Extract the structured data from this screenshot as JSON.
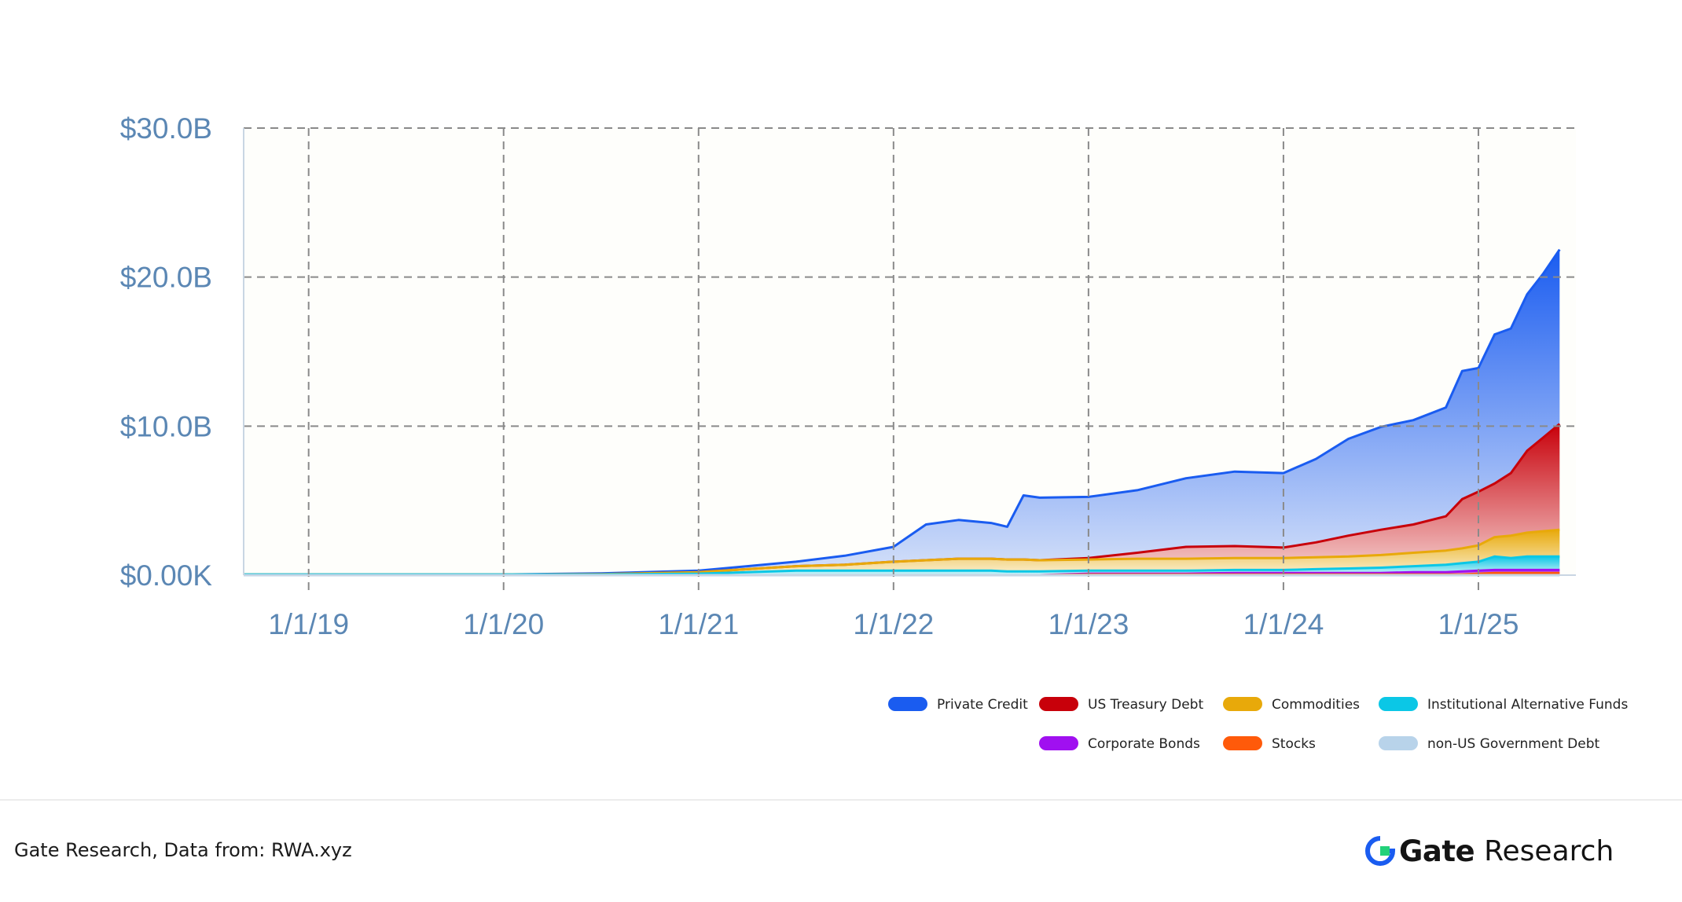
{
  "chart_data": {
    "type": "area",
    "stacked": true,
    "title": "",
    "xlabel": "",
    "ylabel": "",
    "ylim": [
      0,
      30
    ],
    "y_unit": "$B",
    "y_ticks": [
      {
        "value": 0,
        "label": "$0.00K"
      },
      {
        "value": 10,
        "label": "$10.0B"
      },
      {
        "value": 20,
        "label": "$20.0B"
      },
      {
        "value": 30,
        "label": "$30.0B"
      }
    ],
    "x_ticks": [
      "1/1/19",
      "1/1/20",
      "1/1/21",
      "1/1/22",
      "1/1/23",
      "1/1/24",
      "1/1/25"
    ],
    "x_range": [
      "2018-09-01",
      "2025-07-01"
    ],
    "grid": true,
    "legend_position": "bottom-right",
    "x": [
      "2018-09",
      "2019-01",
      "2019-07",
      "2020-01",
      "2020-07",
      "2021-01",
      "2021-04",
      "2021-07",
      "2021-10",
      "2022-01",
      "2022-03",
      "2022-05",
      "2022-07",
      "2022-08",
      "2022-09",
      "2022-10",
      "2023-01",
      "2023-04",
      "2023-07",
      "2023-10",
      "2024-01",
      "2024-03",
      "2024-05",
      "2024-07",
      "2024-09",
      "2024-11",
      "2024-12",
      "2025-01",
      "2025-02",
      "2025-03",
      "2025-04",
      "2025-05",
      "2025-06"
    ],
    "series": [
      {
        "name": "non-US Government Debt",
        "color": "#b8d3ea",
        "values": [
          0,
          0,
          0,
          0,
          0,
          0,
          0,
          0,
          0,
          0,
          0,
          0,
          0,
          0,
          0,
          0,
          0,
          0,
          0,
          0,
          0,
          0,
          0,
          0,
          0,
          0,
          0,
          0,
          0,
          0,
          0,
          0,
          0
        ]
      },
      {
        "name": "Stocks",
        "color": "#ff5a0a",
        "values": [
          0,
          0,
          0,
          0,
          0,
          0,
          0,
          0,
          0,
          0,
          0,
          0,
          0,
          0,
          0,
          0,
          0.05,
          0.05,
          0.05,
          0.05,
          0.05,
          0.05,
          0.05,
          0.05,
          0.05,
          0.05,
          0.05,
          0.1,
          0.15,
          0.15,
          0.15,
          0.15,
          0.15
        ]
      },
      {
        "name": "Corporate Bonds",
        "color": "#a010f0",
        "values": [
          0,
          0,
          0,
          0,
          0,
          0,
          0,
          0,
          0,
          0,
          0,
          0,
          0,
          0,
          0,
          0,
          0.05,
          0.05,
          0.05,
          0.1,
          0.1,
          0.1,
          0.1,
          0.1,
          0.15,
          0.15,
          0.2,
          0.2,
          0.2,
          0.2,
          0.2,
          0.2,
          0.2
        ]
      },
      {
        "name": "Institutional Alternative Funds",
        "color": "#0bc7e6",
        "values": [
          0.05,
          0.05,
          0.05,
          0.05,
          0.05,
          0.1,
          0.2,
          0.3,
          0.3,
          0.3,
          0.3,
          0.3,
          0.3,
          0.25,
          0.25,
          0.25,
          0.2,
          0.2,
          0.2,
          0.2,
          0.2,
          0.25,
          0.3,
          0.35,
          0.4,
          0.5,
          0.55,
          0.6,
          0.9,
          0.8,
          0.9,
          0.9,
          0.9
        ]
      },
      {
        "name": "Commodities",
        "color": "#e8a90a",
        "values": [
          0,
          0,
          0,
          0,
          0.02,
          0.1,
          0.2,
          0.3,
          0.4,
          0.6,
          0.7,
          0.8,
          0.8,
          0.8,
          0.8,
          0.75,
          0.75,
          0.8,
          0.8,
          0.8,
          0.8,
          0.8,
          0.8,
          0.85,
          0.9,
          0.95,
          1.0,
          1.1,
          1.3,
          1.5,
          1.6,
          1.7,
          1.8
        ]
      },
      {
        "name": "US Treasury Debt",
        "color": "#c8000a",
        "values": [
          0,
          0,
          0,
          0,
          0,
          0,
          0,
          0,
          0,
          0,
          0,
          0,
          0,
          0,
          0,
          0,
          0.1,
          0.4,
          0.8,
          0.8,
          0.7,
          1.0,
          1.4,
          1.7,
          1.9,
          2.3,
          3.3,
          3.6,
          3.6,
          4.2,
          5.5,
          6.3,
          7.1
        ]
      },
      {
        "name": "Private Credit",
        "color": "#1a5cf0",
        "values": [
          0,
          0,
          0,
          0,
          0.05,
          0.1,
          0.2,
          0.3,
          0.6,
          1.0,
          2.4,
          2.6,
          2.4,
          2.2,
          4.3,
          4.2,
          4.1,
          4.2,
          4.6,
          5.0,
          5.0,
          5.6,
          6.5,
          6.9,
          7.0,
          7.3,
          8.6,
          8.3,
          10.0,
          9.7,
          10.5,
          11.0,
          11.7
        ]
      }
    ]
  },
  "legend": {
    "items": [
      {
        "label": "Private Credit",
        "color": "#1a5cf0"
      },
      {
        "label": "US Treasury Debt",
        "color": "#c8000a"
      },
      {
        "label": "Commodities",
        "color": "#e8a90a"
      },
      {
        "label": "Institutional Alternative Funds",
        "color": "#0bc7e6"
      },
      {
        "label": "Corporate Bonds",
        "color": "#a010f0"
      },
      {
        "label": "Stocks",
        "color": "#ff5a0a"
      },
      {
        "label": "non-US Government Debt",
        "color": "#b8d3ea"
      }
    ]
  },
  "footer": {
    "source": "Gate Research, Data from: RWA.xyz",
    "brand_name": "Gate",
    "brand_sub": "Research",
    "brand_icon": "gate-logo-icon"
  }
}
